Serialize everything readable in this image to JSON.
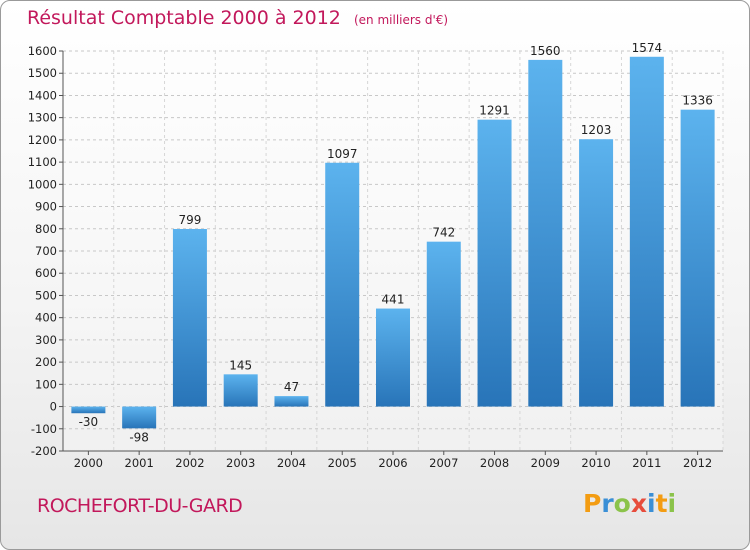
{
  "chart_data": {
    "type": "bar",
    "title": "Résultat Comptable 2000 à 2012",
    "subtitle": "(en milliers d'€)",
    "categories": [
      "2000",
      "2001",
      "2002",
      "2003",
      "2004",
      "2005",
      "2006",
      "2007",
      "2008",
      "2009",
      "2010",
      "2011",
      "2012"
    ],
    "values": [
      -30,
      -98,
      799,
      145,
      47,
      1097,
      441,
      742,
      1291,
      1560,
      1203,
      1574,
      1336
    ],
    "ylim": [
      -200,
      1600
    ],
    "yticks": [
      -200,
      -100,
      0,
      100,
      200,
      300,
      400,
      500,
      600,
      700,
      800,
      900,
      1000,
      1100,
      1200,
      1300,
      1400,
      1500,
      1600
    ],
    "grid": true,
    "bar_color": "#3a8fd6"
  },
  "footer": {
    "commune": "ROCHEFORT-DU-GARD",
    "logo": [
      {
        "char": "P",
        "color": "#f39c12"
      },
      {
        "char": "r",
        "color": "#3a8fd6"
      },
      {
        "char": "o",
        "color": "#8bc34a"
      },
      {
        "char": "x",
        "color": "#e74c3c"
      },
      {
        "char": "i",
        "color": "#3a8fd6"
      },
      {
        "char": "t",
        "color": "#f39c12"
      },
      {
        "char": "i",
        "color": "#8bc34a"
      }
    ]
  }
}
